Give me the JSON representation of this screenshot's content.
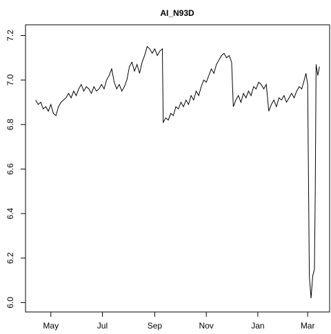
{
  "chart_data": {
    "type": "line",
    "title": "AI_N93D",
    "x": [
      -18,
      -15,
      -12,
      -9,
      -6,
      -3,
      0,
      3,
      6,
      9,
      12,
      15,
      18,
      21,
      24,
      27,
      30,
      33,
      36,
      39,
      42,
      45,
      48,
      51,
      54,
      57,
      60,
      63,
      66,
      69,
      72,
      75,
      78,
      81,
      84,
      87,
      90,
      93,
      96,
      99,
      102,
      105,
      108,
      111,
      114,
      117,
      120,
      123,
      126,
      129,
      132,
      133,
      136,
      139,
      142,
      145,
      148,
      151,
      154,
      157,
      160,
      163,
      166,
      169,
      172,
      175,
      178,
      181,
      184,
      187,
      190,
      193,
      196,
      199,
      202,
      205,
      208,
      211,
      214,
      216,
      219,
      222,
      225,
      228,
      231,
      234,
      237,
      240,
      243,
      246,
      249,
      252,
      255,
      258,
      261,
      264,
      267,
      270,
      273,
      276,
      279,
      282,
      285,
      288,
      291,
      294,
      297,
      300,
      302,
      304,
      306,
      308,
      310,
      312,
      313,
      314,
      316,
      318
    ],
    "values": [
      6.91,
      6.89,
      6.9,
      6.87,
      6.88,
      6.86,
      6.89,
      6.85,
      6.84,
      6.88,
      6.9,
      6.91,
      6.92,
      6.94,
      6.92,
      6.95,
      6.93,
      6.96,
      6.98,
      6.95,
      6.97,
      6.96,
      6.94,
      6.97,
      6.95,
      6.96,
      6.98,
      6.96,
      7.0,
      7.02,
      7.05,
      6.99,
      6.96,
      6.98,
      6.95,
      6.97,
      7.0,
      7.06,
      7.08,
      7.04,
      7.07,
      7.03,
      7.08,
      7.11,
      7.15,
      7.14,
      7.12,
      7.14,
      7.11,
      7.13,
      7.14,
      6.81,
      6.83,
      6.82,
      6.85,
      6.84,
      6.88,
      6.87,
      6.9,
      6.88,
      6.91,
      6.89,
      6.93,
      6.91,
      6.95,
      6.93,
      6.97,
      7.0,
      6.99,
      7.02,
      7.05,
      7.03,
      7.07,
      7.09,
      7.11,
      7.12,
      7.1,
      7.11,
      7.08,
      6.88,
      6.91,
      6.93,
      6.9,
      6.94,
      6.92,
      6.95,
      6.93,
      6.97,
      6.96,
      6.99,
      6.98,
      6.96,
      6.98,
      6.86,
      6.89,
      6.91,
      6.88,
      6.92,
      6.91,
      6.93,
      6.9,
      6.92,
      6.94,
      6.92,
      6.95,
      6.97,
      6.96,
      7.0,
      7.03,
      6.98,
      6.12,
      6.02,
      6.12,
      6.15,
      6.5,
      7.07,
      7.02,
      7.06
    ],
    "color": "#000000",
    "xlim": [
      -30,
      330
    ],
    "xticks": [
      {
        "value": 0,
        "label": "May"
      },
      {
        "value": 61,
        "label": "Jul"
      },
      {
        "value": 123,
        "label": "Sep"
      },
      {
        "value": 184,
        "label": "Nov"
      },
      {
        "value": 245,
        "label": "Jan"
      },
      {
        "value": 304,
        "label": "Mar"
      }
    ],
    "ylim": [
      5.958,
      7.248
    ],
    "yticks": [
      {
        "value": 6,
        "label": "6.0"
      },
      6.2,
      6.4,
      6.6,
      6.8,
      {
        "value": 7,
        "label": "7.0"
      },
      7.2
    ]
  }
}
